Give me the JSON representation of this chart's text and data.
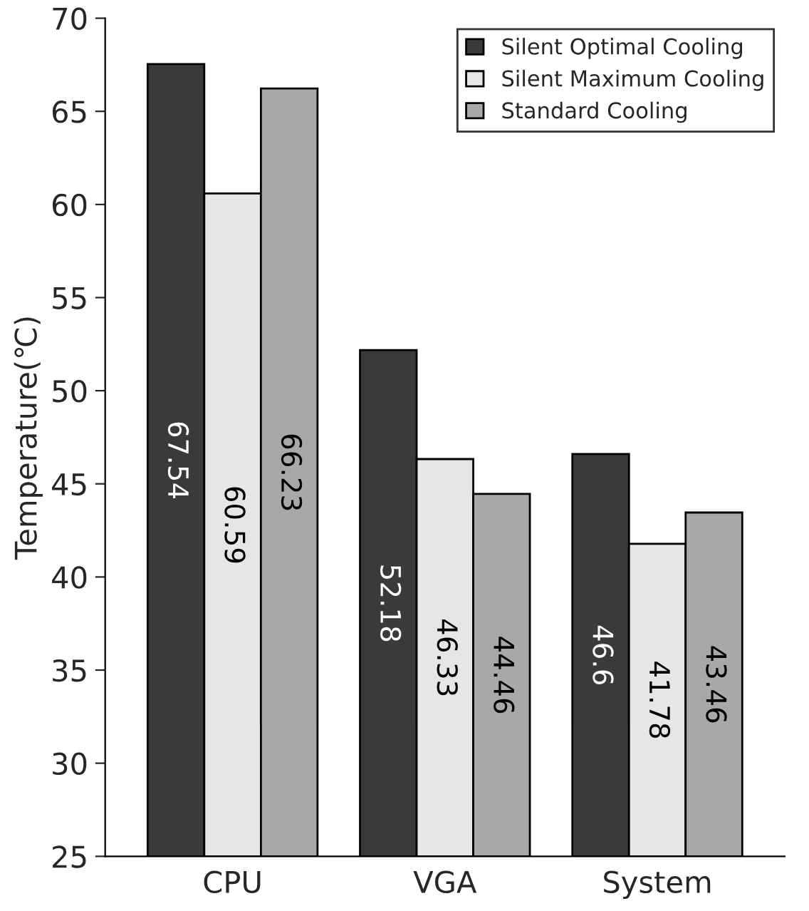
{
  "chart_data": {
    "type": "bar",
    "ylabel": "Temperature(℃)",
    "categories": [
      "CPU",
      "VGA",
      "System"
    ],
    "series": [
      {
        "name": "Silent Optimal Cooling",
        "color": "#3a3a3a",
        "values": [
          67.54,
          52.18,
          46.6
        ]
      },
      {
        "name": "Silent Maximum Cooling",
        "color": "#e6e6e6",
        "values": [
          60.59,
          46.33,
          41.78
        ]
      },
      {
        "name": "Standard Cooling",
        "color": "#a8a8a8",
        "values": [
          66.23,
          44.46,
          43.46
        ]
      }
    ],
    "ylim": [
      25,
      70
    ],
    "yticks": [
      25,
      30,
      35,
      40,
      45,
      50,
      55,
      60,
      65,
      70
    ],
    "data_labels": true,
    "legend": "top right",
    "grid": false
  }
}
